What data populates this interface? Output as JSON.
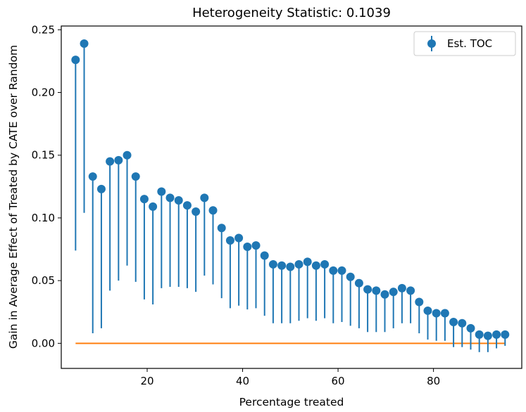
{
  "chart_data": {
    "type": "scatter",
    "title": "Heterogeneity Statistic: 0.1039",
    "xlabel": "Percentage treated",
    "ylabel": "Gain in Average Effect of Treated by CATE over Random",
    "xlim": [
      2,
      98.5
    ],
    "ylim": [
      -0.02,
      0.253
    ],
    "xticks": [
      20,
      40,
      60,
      80
    ],
    "yticks": [
      0.0,
      0.05,
      0.1,
      0.15,
      0.2,
      0.25
    ],
    "ytick_labels": [
      "0.00",
      "0.05",
      "0.10",
      "0.15",
      "0.20",
      "0.25"
    ],
    "legend": {
      "label": "Est. TOC",
      "position": "top-right"
    },
    "colors": {
      "series": "#1f77b4",
      "baseline": "#ff7f0e"
    },
    "baseline": {
      "y": 0,
      "x_range": [
        5,
        95
      ]
    },
    "series": [
      {
        "name": "Est. TOC",
        "x": [
          5,
          6.8,
          8.6,
          10.4,
          12.2,
          14,
          15.8,
          17.6,
          19.4,
          21.2,
          23,
          24.8,
          26.6,
          28.4,
          30.2,
          32,
          33.8,
          35.6,
          37.4,
          39.2,
          41,
          42.8,
          44.6,
          46.4,
          48.2,
          50,
          51.8,
          53.6,
          55.4,
          57.2,
          59,
          60.8,
          62.6,
          64.4,
          66.2,
          68,
          69.8,
          71.6,
          73.4,
          75.2,
          77,
          78.8,
          80.6,
          82.4,
          84.2,
          86,
          87.8,
          89.6,
          91.4,
          93.2,
          95
        ],
        "y": [
          0.226,
          0.239,
          0.133,
          0.123,
          0.145,
          0.146,
          0.15,
          0.133,
          0.115,
          0.109,
          0.121,
          0.116,
          0.114,
          0.11,
          0.105,
          0.116,
          0.106,
          0.092,
          0.082,
          0.084,
          0.077,
          0.078,
          0.07,
          0.063,
          0.062,
          0.061,
          0.063,
          0.065,
          0.062,
          0.063,
          0.058,
          0.058,
          0.053,
          0.048,
          0.043,
          0.042,
          0.039,
          0.041,
          0.044,
          0.042,
          0.033,
          0.026,
          0.024,
          0.024,
          0.017,
          0.016,
          0.012,
          0.007,
          0.006,
          0.007,
          0.007
        ],
        "lower": [
          0.074,
          0.104,
          0.008,
          0.012,
          0.042,
          0.05,
          0.062,
          0.049,
          0.035,
          0.031,
          0.044,
          0.045,
          0.045,
          0.044,
          0.041,
          0.054,
          0.047,
          0.036,
          0.028,
          0.03,
          0.027,
          0.028,
          0.022,
          0.016,
          0.016,
          0.016,
          0.018,
          0.02,
          0.018,
          0.02,
          0.016,
          0.017,
          0.014,
          0.012,
          0.009,
          0.009,
          0.009,
          0.012,
          0.016,
          0.016,
          0.008,
          0.003,
          0.002,
          0.002,
          -0.003,
          -0.003,
          -0.005,
          -0.007,
          -0.007,
          -0.004,
          -0.002
        ],
        "upper": [
          0.226,
          0.239,
          0.133,
          0.123,
          0.145,
          0.146,
          0.15,
          0.133,
          0.115,
          0.109,
          0.121,
          0.116,
          0.114,
          0.11,
          0.105,
          0.116,
          0.106,
          0.092,
          0.082,
          0.084,
          0.077,
          0.078,
          0.07,
          0.063,
          0.062,
          0.061,
          0.063,
          0.065,
          0.062,
          0.063,
          0.058,
          0.058,
          0.053,
          0.048,
          0.043,
          0.042,
          0.039,
          0.041,
          0.044,
          0.042,
          0.033,
          0.026,
          0.024,
          0.024,
          0.017,
          0.016,
          0.012,
          0.007,
          0.006,
          0.007,
          0.007
        ]
      }
    ]
  }
}
